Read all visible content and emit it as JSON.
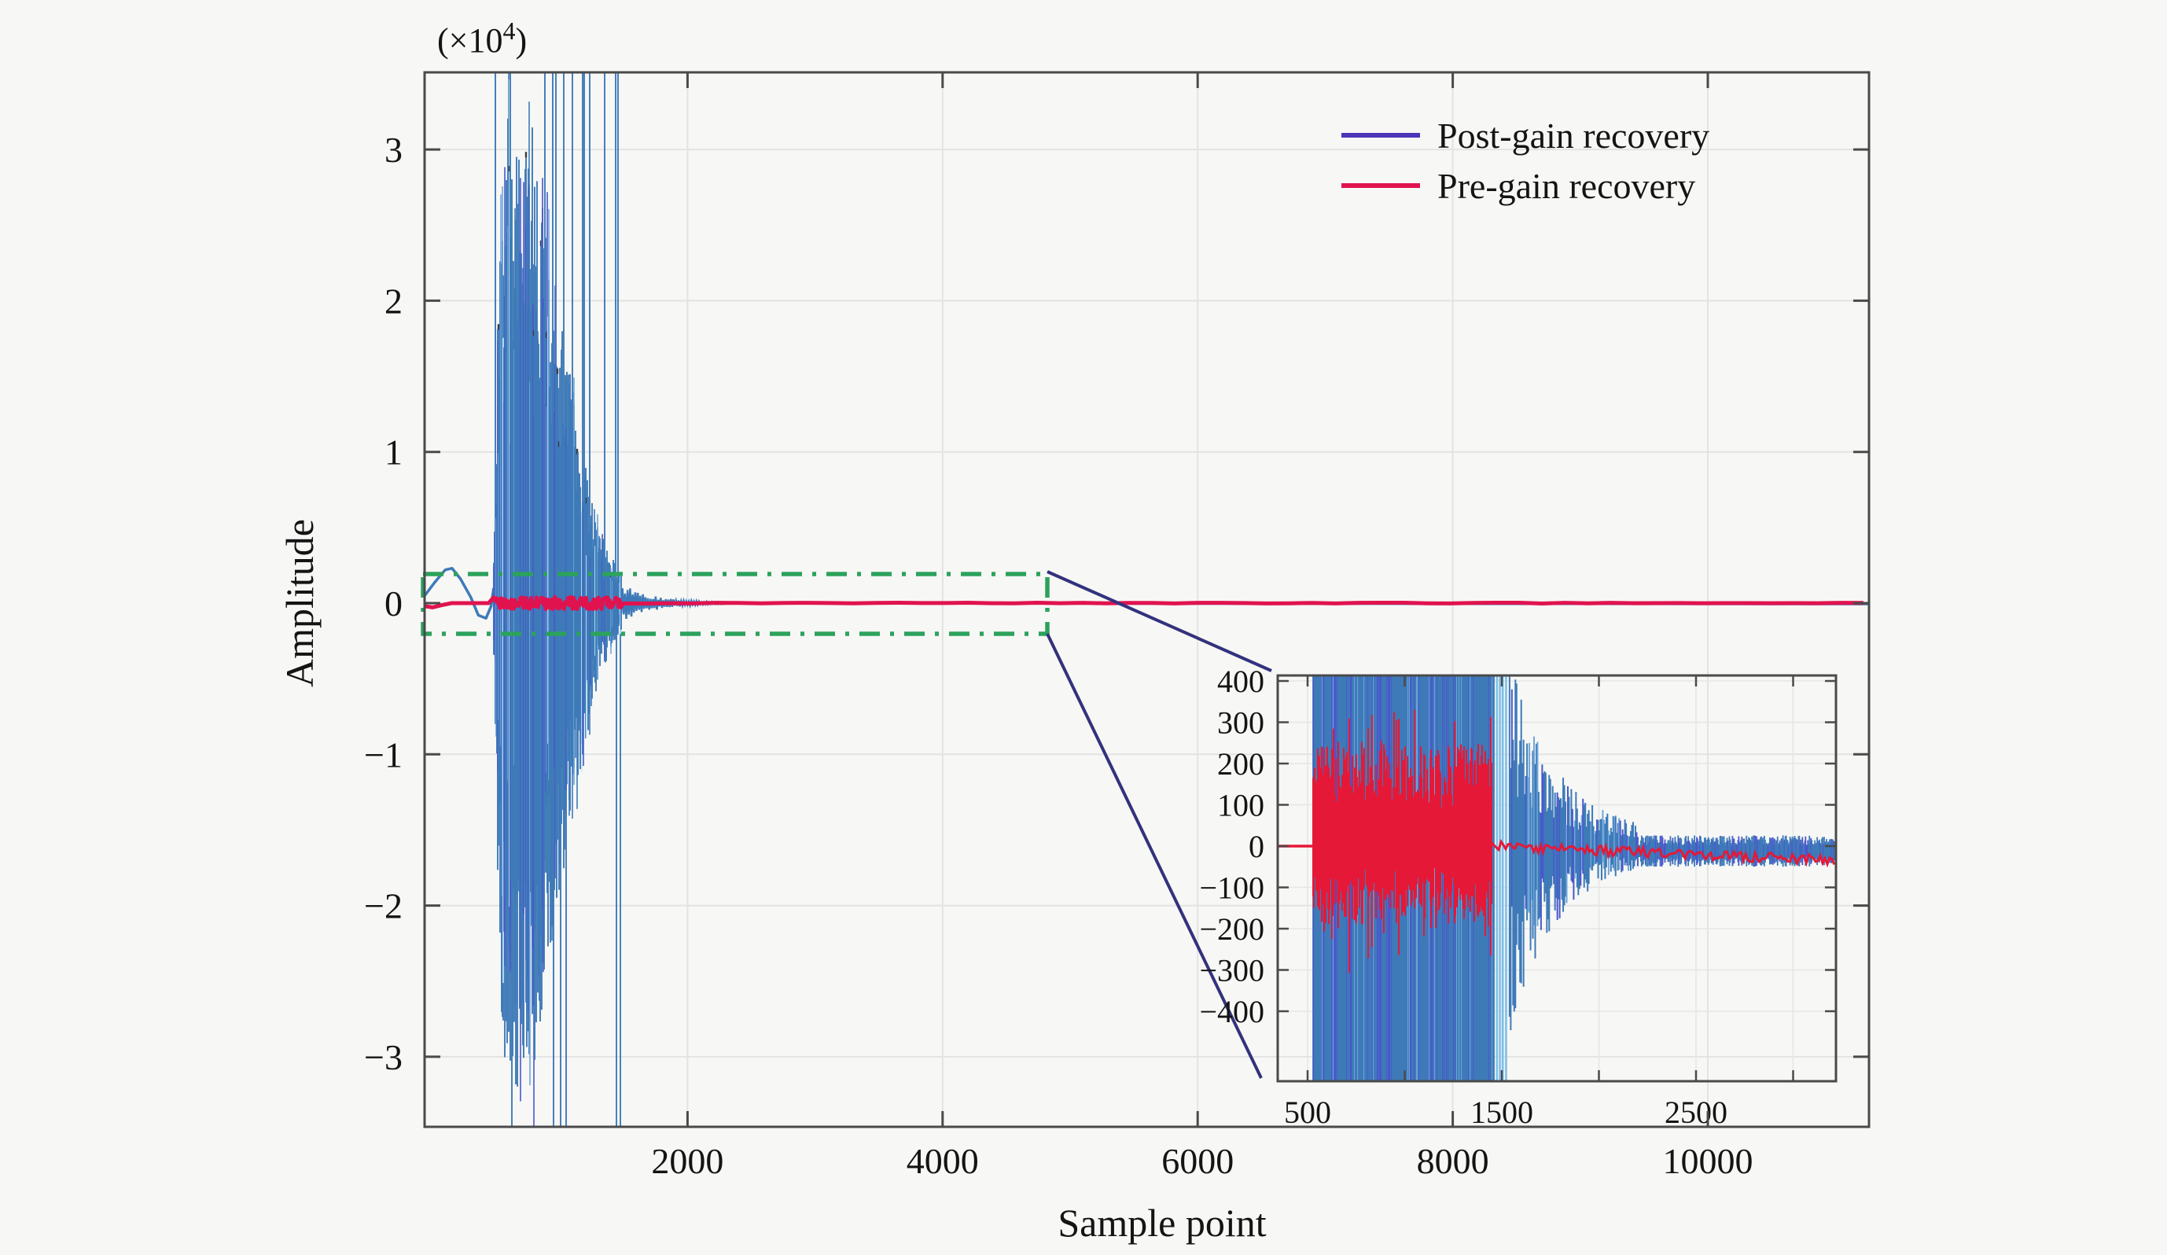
{
  "figure": {
    "background": "#f7f7f5",
    "axes_color": "#4a4a4a",
    "grid_color": "#e3e3e3",
    "text_color": "#141414"
  },
  "chart_data": {
    "type": "line",
    "title": "",
    "xlabel": "Sample point",
    "ylabel": "Amplitude",
    "y_unit_label": {
      "prefix": "(×10",
      "sup": "4",
      "suffix": ")"
    },
    "xlim": [
      -60,
      11260
    ],
    "ylim": [
      -35000,
      35000
    ],
    "x_ticks": [
      2000,
      4000,
      6000,
      8000,
      10000
    ],
    "y_ticks_e4": [
      3,
      2,
      1,
      0,
      -1,
      -2,
      -3
    ],
    "y_tick_scale": 10000,
    "grid": true,
    "legend": {
      "position": "top-right-inside",
      "entries": [
        {
          "label": "Post-gain recovery",
          "color": "#4d35b8"
        },
        {
          "label": "Pre-gain recovery",
          "color": "#e0134f"
        }
      ]
    },
    "series": [
      {
        "name": "Post-gain recovery",
        "color": "#3e7ab8",
        "accent_colors": [
          "#4a57cc",
          "#6fa7db",
          "#c9ecfa"
        ],
        "initial_hump_e4": [
          [
            -60,
            0.05
          ],
          [
            20,
            0.14
          ],
          [
            100,
            0.22
          ],
          [
            154,
            0.23
          ],
          [
            220,
            0.16
          ],
          [
            300,
            0.04
          ],
          [
            360,
            -0.08
          ],
          [
            420,
            -0.1
          ],
          [
            460,
            -0.02
          ],
          [
            480,
            0.1
          ]
        ],
        "burst_envelope_e4": [
          [
            480,
            0.3
          ],
          [
            510,
            1.8
          ],
          [
            540,
            2.7
          ],
          [
            580,
            3.2
          ],
          [
            640,
            3.3
          ],
          [
            720,
            3.0
          ],
          [
            800,
            3.2
          ],
          [
            880,
            2.6
          ],
          [
            960,
            2.15
          ],
          [
            1040,
            1.75
          ],
          [
            1120,
            1.35
          ],
          [
            1200,
            0.95
          ],
          [
            1280,
            0.6
          ],
          [
            1380,
            0.35
          ],
          [
            1480,
            0.2
          ]
        ],
        "clip_level_e4": 3.5,
        "ringdown": {
          "start": 1480,
          "end": 2400,
          "amp_e4": 0.13,
          "tau": 260
        },
        "tail_level_e4": -0.008
      },
      {
        "name": "Pre-gain recovery",
        "color": "#e0134f",
        "start_dip_e4": [
          [
            -60,
            -0.02
          ],
          [
            0,
            -0.028
          ],
          [
            80,
            -0.012
          ],
          [
            150,
            0
          ]
        ],
        "burst_range": [
          480,
          1480
        ],
        "burst_jitter_e4": 0.04,
        "level_e4": 0
      }
    ],
    "zoom_region": {
      "x0": -70,
      "x1": 4820,
      "y0": -2000,
      "y1": 1900,
      "line_style": "dash-dot",
      "color": "#2ca25c"
    },
    "inset": {
      "xlim": [
        346,
        3220
      ],
      "ylim": [
        -570,
        413
      ],
      "x_ticks": [
        500,
        1000,
        1500,
        2000,
        2500,
        3000
      ],
      "x_tick_labels": [
        "500",
        "",
        "1500",
        "",
        "2500",
        ""
      ],
      "y_ticks": [
        400,
        300,
        200,
        100,
        0,
        -100,
        -200,
        -300,
        -400
      ],
      "blue": {
        "solid_range": [
          530,
          1460
        ],
        "post_spikes": [
          1475,
          1490,
          1505,
          1522
        ],
        "decay": {
          "start": 1540,
          "end": 2200,
          "amp0": 430,
          "tau": 240,
          "floor": 30
        },
        "noise": {
          "start": 2200,
          "end": 3215,
          "amp": 38,
          "bias": -12
        }
      },
      "red": {
        "color": "#e51937",
        "lead_level": 0,
        "burst_range": [
          530,
          1448
        ],
        "burst_amp": 255,
        "burst_extreme": 330,
        "tail_amp": 12,
        "tail_bias_end": -35
      }
    }
  }
}
